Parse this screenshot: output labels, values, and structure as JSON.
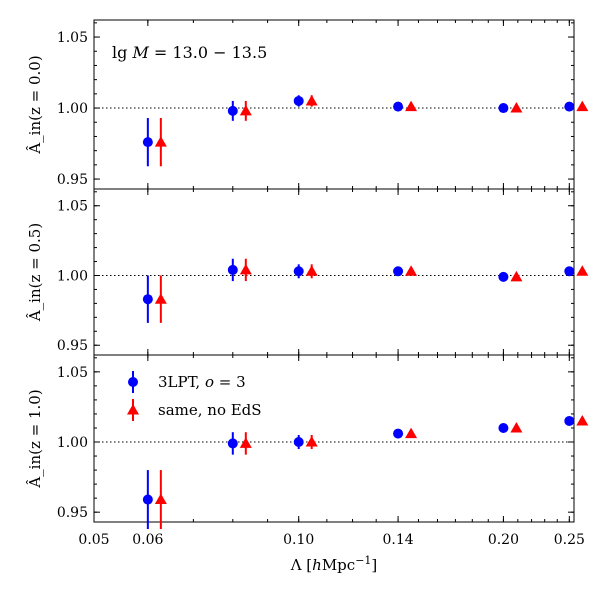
{
  "chart_data": {
    "type": "scatter",
    "x_scale": "log",
    "xlabel": "Λ [hMpc⁻¹]",
    "xlim": [
      0.05,
      0.254
    ],
    "x_ticks": [
      0.05,
      0.06,
      0.1,
      0.14,
      0.2,
      0.25
    ],
    "x_tick_labels": [
      "0.05",
      "0.06",
      "0.10",
      "0.14",
      "0.20",
      "0.25"
    ],
    "ylim": [
      0.943,
      1.062
    ],
    "y_ticks": [
      0.95,
      1.0,
      1.05
    ],
    "y_tick_labels": [
      "0.95",
      "1.00",
      "1.05"
    ],
    "reference_line": 1.0,
    "grid": false,
    "annotation": "lg M = 13.0 − 13.5",
    "legend": {
      "location": "upper-left",
      "panel": 2
    },
    "x_values": [
      0.06,
      0.08,
      0.1,
      0.14,
      0.2,
      0.25
    ],
    "panels": [
      {
        "ylabel": "Â_in(z = 0.0)",
        "series": [
          {
            "name": "3LPT, o = 3",
            "color": "#0000ff",
            "marker": "circle",
            "y": [
              0.976,
              0.998,
              1.005,
              1.001,
              1.0,
              1.001
            ],
            "yerr": [
              0.017,
              0.007,
              0.004,
              0.0015,
              0.0012,
              0.001
            ]
          },
          {
            "name": "same, no EdS",
            "color": "#ff0000",
            "marker": "triangle",
            "y": [
              0.976,
              0.998,
              1.005,
              1.001,
              1.0,
              1.001
            ],
            "yerr": [
              0.017,
              0.007,
              0.004,
              0.0015,
              0.0012,
              0.001
            ]
          }
        ]
      },
      {
        "ylabel": "Â_in(z = 0.5)",
        "series": [
          {
            "name": "3LPT, o = 3",
            "color": "#0000ff",
            "marker": "circle",
            "y": [
              0.983,
              1.004,
              1.003,
              1.003,
              0.999,
              1.003
            ],
            "yerr": [
              0.017,
              0.008,
              0.005,
              0.0015,
              0.0012,
              0.001
            ]
          },
          {
            "name": "same, no EdS",
            "color": "#ff0000",
            "marker": "triangle",
            "y": [
              0.983,
              1.004,
              1.003,
              1.003,
              0.999,
              1.003
            ],
            "yerr": [
              0.017,
              0.008,
              0.005,
              0.0015,
              0.0012,
              0.001
            ]
          }
        ]
      },
      {
        "ylabel": "Â_in(z = 1.0)",
        "series": [
          {
            "name": "3LPT, o = 3",
            "color": "#0000ff",
            "marker": "circle",
            "y": [
              0.959,
              0.999,
              1.0,
              1.006,
              1.01,
              1.015
            ],
            "yerr": [
              0.021,
              0.008,
              0.005,
              0.0015,
              0.0012,
              0.001
            ]
          },
          {
            "name": "same, no EdS",
            "color": "#ff0000",
            "marker": "triangle",
            "y": [
              0.959,
              0.999,
              1.0,
              1.006,
              1.01,
              1.015
            ],
            "yerr": [
              0.021,
              0.008,
              0.005,
              0.0015,
              0.0012,
              0.001
            ]
          }
        ]
      }
    ]
  }
}
